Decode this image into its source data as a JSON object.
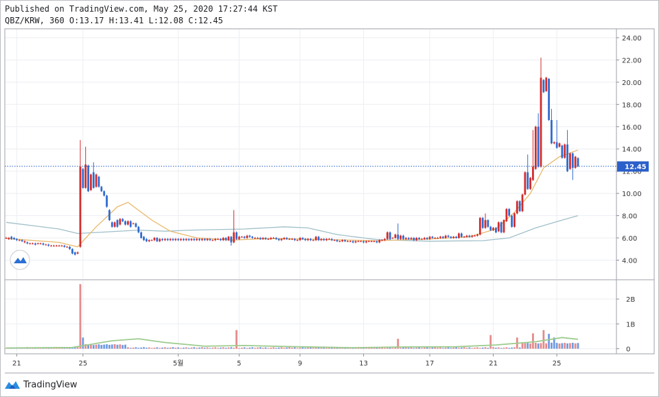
{
  "header": {
    "published": "Published on TradingView.com, May 25, 2020 17:27:44 KST",
    "ohlc": "QBZ/KRW, 360 O:13.17 H:13.41 L:12.08 C:12.45"
  },
  "footer": {
    "brand": "TradingView"
  },
  "colors": {
    "up": "#d22b2b",
    "down": "#2f6ad0",
    "ma_short": "#e8b86a",
    "ma_long": "#9fbfc9",
    "vol_ma": "#9ccc8e",
    "last_price": "#2b5fc9"
  },
  "chart_data": {
    "type": "candlestick",
    "price_axis": {
      "ticks": [
        "24.00",
        "22.00",
        "20.00",
        "18.00",
        "16.00",
        "14.00",
        "12.00",
        "10.00",
        "8.00",
        "6.00",
        "4.00"
      ],
      "ylim": [
        2.3,
        24.8
      ]
    },
    "volume_axis": {
      "ticks": [
        "2B",
        "1B",
        "0"
      ],
      "ylim": [
        -0.15,
        2.75
      ]
    },
    "time_axis": {
      "labels": [
        "21",
        "25",
        "5월",
        "5",
        "9",
        "13",
        "17",
        "21",
        "25"
      ],
      "label_index": [
        4,
        29,
        65,
        88,
        111,
        135,
        160,
        184,
        208
      ]
    },
    "last_price": {
      "value": 12.45,
      "label": "12.45"
    },
    "candles": [
      [
        6.0,
        6.0
      ],
      [
        5.9,
        6.0
      ],
      [
        6.1,
        5.9
      ],
      [
        6.0,
        5.9
      ],
      [
        5.9,
        5.8
      ],
      [
        5.8,
        5.8
      ],
      [
        5.8,
        5.7
      ],
      [
        5.6,
        5.7
      ],
      [
        5.6,
        5.5
      ],
      [
        5.5,
        5.5
      ],
      [
        5.5,
        5.5
      ],
      [
        5.5,
        5.4
      ],
      [
        5.5,
        5.5
      ],
      [
        5.5,
        5.5
      ],
      [
        5.5,
        5.4
      ],
      [
        5.4,
        5.4
      ],
      [
        5.4,
        5.3
      ],
      [
        5.3,
        5.3
      ],
      [
        5.3,
        5.3
      ],
      [
        5.3,
        5.3
      ],
      [
        5.3,
        5.3
      ],
      [
        5.3,
        5.3
      ],
      [
        5.3,
        5.2
      ],
      [
        5.2,
        5.2
      ],
      [
        5.2,
        5.0
      ],
      [
        5.0,
        4.6
      ],
      [
        4.7,
        4.5
      ],
      [
        4.6,
        4.7
      ],
      [
        5.2,
        12.4
      ],
      [
        12.2,
        10.5
      ],
      [
        10.5,
        12.6
      ],
      [
        12.5,
        10.2
      ],
      [
        10.3,
        11.7
      ],
      [
        11.9,
        10.5
      ],
      [
        10.6,
        11.7
      ],
      [
        11.5,
        10.6
      ],
      [
        10.6,
        10.2
      ],
      [
        10.2,
        9.8
      ],
      [
        9.8,
        8.8
      ],
      [
        8.5,
        7.6
      ],
      [
        7.4,
        7.0
      ],
      [
        7.0,
        7.4
      ],
      [
        7.6,
        7.0
      ],
      [
        7.2,
        7.7
      ],
      [
        7.7,
        7.5
      ],
      [
        7.5,
        7.2
      ],
      [
        7.2,
        7.5
      ],
      [
        7.5,
        7.0
      ],
      [
        7.3,
        7.3
      ],
      [
        7.3,
        7.0
      ],
      [
        7.0,
        6.5
      ],
      [
        6.5,
        6.0
      ],
      [
        6.1,
        5.8
      ],
      [
        5.9,
        5.7
      ],
      [
        5.7,
        5.8
      ],
      [
        5.8,
        5.8
      ],
      [
        5.8,
        6.0
      ],
      [
        6.0,
        5.7
      ],
      [
        5.7,
        5.9
      ],
      [
        5.9,
        5.8
      ],
      [
        5.8,
        5.9
      ],
      [
        5.9,
        5.8
      ],
      [
        5.8,
        5.9
      ],
      [
        5.9,
        5.8
      ],
      [
        5.8,
        5.9
      ],
      [
        5.9,
        5.8
      ],
      [
        5.8,
        5.9
      ],
      [
        5.9,
        5.8
      ],
      [
        5.8,
        5.9
      ],
      [
        5.9,
        5.8
      ],
      [
        5.8,
        5.9
      ],
      [
        5.9,
        5.8
      ],
      [
        5.8,
        5.9
      ],
      [
        5.9,
        5.8
      ],
      [
        5.8,
        5.9
      ],
      [
        5.9,
        5.8
      ],
      [
        5.8,
        5.9
      ],
      [
        5.9,
        5.8
      ],
      [
        5.8,
        5.8
      ],
      [
        5.8,
        5.9
      ],
      [
        5.9,
        5.9
      ],
      [
        5.9,
        5.8
      ],
      [
        5.8,
        6.0
      ],
      [
        6.0,
        5.8
      ],
      [
        5.8,
        6.1
      ],
      [
        6.1,
        5.6
      ],
      [
        5.6,
        6.5
      ],
      [
        6.5,
        5.9
      ],
      [
        5.9,
        6.1
      ],
      [
        6.1,
        6.1
      ],
      [
        6.1,
        6.0
      ],
      [
        6.0,
        6.2
      ],
      [
        6.2,
        6.1
      ],
      [
        6.1,
        6.0
      ],
      [
        6.0,
        6.0
      ],
      [
        6.0,
        6.0
      ],
      [
        6.0,
        5.9
      ],
      [
        5.9,
        6.0
      ],
      [
        6.0,
        5.9
      ],
      [
        5.9,
        5.9
      ],
      [
        5.9,
        6.0
      ],
      [
        6.0,
        6.0
      ],
      [
        6.0,
        5.9
      ],
      [
        5.9,
        5.8
      ],
      [
        5.8,
        5.9
      ],
      [
        5.9,
        6.0
      ],
      [
        6.0,
        5.9
      ],
      [
        5.9,
        5.9
      ],
      [
        5.9,
        5.9
      ],
      [
        5.9,
        5.8
      ],
      [
        5.8,
        5.8
      ],
      [
        5.8,
        6.0
      ],
      [
        6.0,
        5.9
      ],
      [
        5.9,
        5.8
      ],
      [
        5.8,
        5.9
      ],
      [
        5.9,
        5.8
      ],
      [
        5.8,
        5.8
      ],
      [
        5.8,
        6.1
      ],
      [
        6.1,
        5.8
      ],
      [
        5.8,
        5.9
      ],
      [
        5.9,
        5.8
      ],
      [
        5.8,
        5.9
      ],
      [
        5.9,
        5.9
      ],
      [
        5.9,
        5.8
      ],
      [
        5.8,
        5.8
      ],
      [
        5.8,
        5.7
      ],
      [
        5.7,
        5.7
      ],
      [
        5.7,
        5.8
      ],
      [
        5.8,
        5.7
      ],
      [
        5.7,
        5.7
      ],
      [
        5.7,
        5.7
      ],
      [
        5.7,
        5.6
      ],
      [
        5.6,
        5.7
      ],
      [
        5.7,
        5.7
      ],
      [
        5.7,
        5.7
      ],
      [
        5.7,
        5.6
      ],
      [
        5.6,
        5.7
      ],
      [
        5.7,
        5.7
      ],
      [
        5.7,
        5.7
      ],
      [
        5.7,
        5.7
      ],
      [
        5.7,
        5.6
      ],
      [
        5.6,
        5.8
      ],
      [
        5.8,
        5.8
      ],
      [
        5.8,
        5.9
      ],
      [
        5.9,
        6.5
      ],
      [
        6.5,
        5.9
      ],
      [
        6.0,
        6.0
      ],
      [
        6.0,
        6.3
      ],
      [
        6.3,
        5.9
      ],
      [
        5.9,
        6.2
      ],
      [
        6.2,
        5.9
      ],
      [
        5.9,
        6.0
      ],
      [
        6.0,
        5.9
      ],
      [
        5.9,
        6.0
      ],
      [
        6.0,
        5.8
      ],
      [
        5.8,
        6.0
      ],
      [
        6.0,
        5.9
      ],
      [
        5.9,
        5.9
      ],
      [
        5.9,
        6.0
      ],
      [
        6.0,
        5.9
      ],
      [
        5.9,
        6.1
      ],
      [
        6.1,
        6.0
      ],
      [
        6.0,
        6.0
      ],
      [
        6.0,
        6.0
      ],
      [
        6.0,
        6.1
      ],
      [
        6.1,
        6.0
      ],
      [
        6.0,
        6.2
      ],
      [
        6.2,
        6.1
      ],
      [
        6.1,
        6.0
      ],
      [
        6.0,
        6.1
      ],
      [
        6.1,
        6.0
      ],
      [
        6.0,
        6.4
      ],
      [
        6.4,
        6.1
      ],
      [
        6.1,
        6.1
      ],
      [
        6.1,
        6.2
      ],
      [
        6.2,
        6.1
      ],
      [
        6.1,
        6.2
      ],
      [
        6.2,
        6.2
      ],
      [
        6.2,
        6.3
      ],
      [
        6.3,
        7.8
      ],
      [
        7.8,
        6.9
      ],
      [
        6.9,
        7.6
      ],
      [
        7.6,
        7.0
      ],
      [
        7.0,
        6.7
      ],
      [
        6.7,
        6.9
      ],
      [
        6.9,
        6.5
      ],
      [
        6.6,
        7.4
      ],
      [
        7.4,
        6.5
      ],
      [
        6.5,
        7.6
      ],
      [
        7.5,
        8.6
      ],
      [
        8.6,
        8.0
      ],
      [
        8.0,
        7.0
      ],
      [
        7.0,
        8.2
      ],
      [
        8.2,
        9.3
      ],
      [
        9.3,
        8.4
      ],
      [
        8.4,
        9.9
      ],
      [
        9.9,
        11.9
      ],
      [
        11.9,
        10.4
      ],
      [
        10.4,
        11.4
      ],
      [
        11.2,
        12.4
      ],
      [
        12.2,
        16.0
      ],
      [
        16.0,
        12.4
      ],
      [
        12.4,
        20.4
      ],
      [
        20.2,
        19.1
      ],
      [
        19.2,
        20.4
      ],
      [
        20.3,
        16.6
      ],
      [
        16.6,
        14.5
      ],
      [
        14.5,
        14.6
      ],
      [
        14.6,
        14.1
      ],
      [
        14.2,
        14.5
      ],
      [
        14.3,
        13.2
      ],
      [
        13.2,
        14.4
      ],
      [
        14.4,
        12.0
      ],
      [
        12.2,
        13.6
      ],
      [
        13.6,
        12.3
      ],
      [
        12.3,
        13.3
      ],
      [
        13.17,
        12.45
      ]
    ],
    "wick_extremes": [
      {
        "i": 28,
        "high": 14.8,
        "low": 5.1
      },
      {
        "i": 30,
        "high": 14.2
      },
      {
        "i": 33,
        "high": 12.8
      },
      {
        "i": 85,
        "low": 5.3
      },
      {
        "i": 86,
        "high": 8.5
      },
      {
        "i": 148,
        "high": 7.3
      },
      {
        "i": 181,
        "high": 8.2
      },
      {
        "i": 197,
        "high": 13.5
      },
      {
        "i": 199,
        "high": 15.7
      },
      {
        "i": 201,
        "high": 17.2
      },
      {
        "i": 202,
        "high": 22.2
      },
      {
        "i": 206,
        "high": 17.6
      },
      {
        "i": 208,
        "high": 16.6
      },
      {
        "i": 212,
        "high": 15.7
      },
      {
        "i": 214,
        "low": 11.2
      }
    ],
    "ma_short": [
      [
        0,
        5.95
      ],
      [
        20,
        5.6
      ],
      [
        27,
        5.2
      ],
      [
        34,
        7.0
      ],
      [
        42,
        8.8
      ],
      [
        46,
        9.2
      ],
      [
        55,
        7.6
      ],
      [
        62,
        6.6
      ],
      [
        72,
        6.0
      ],
      [
        85,
        5.8
      ],
      [
        100,
        5.95
      ],
      [
        120,
        5.85
      ],
      [
        140,
        5.75
      ],
      [
        160,
        5.9
      ],
      [
        175,
        6.1
      ],
      [
        185,
        6.8
      ],
      [
        192,
        8.3
      ],
      [
        198,
        10.0
      ],
      [
        203,
        12.3
      ],
      [
        209,
        13.3
      ],
      [
        216,
        13.9
      ]
    ],
    "ma_long": [
      [
        0,
        7.4
      ],
      [
        10,
        7.1
      ],
      [
        20,
        6.8
      ],
      [
        27,
        6.4
      ],
      [
        35,
        6.5
      ],
      [
        50,
        6.7
      ],
      [
        60,
        6.6
      ],
      [
        70,
        6.7
      ],
      [
        90,
        6.8
      ],
      [
        105,
        7.0
      ],
      [
        114,
        6.9
      ],
      [
        125,
        6.3
      ],
      [
        140,
        5.85
      ],
      [
        160,
        5.7
      ],
      [
        180,
        5.75
      ],
      [
        190,
        6.0
      ],
      [
        200,
        6.9
      ],
      [
        210,
        7.6
      ],
      [
        216,
        8.0
      ]
    ],
    "volume_spikes": [
      {
        "i": 28,
        "value": 2.6,
        "dir": "up"
      },
      {
        "i": 29,
        "value": 0.45,
        "dir": "down"
      },
      {
        "i": 87,
        "value": 0.75,
        "dir": "up"
      },
      {
        "i": 148,
        "value": 0.4,
        "dir": "up"
      },
      {
        "i": 183,
        "value": 0.55,
        "dir": "up"
      },
      {
        "i": 193,
        "value": 0.45,
        "dir": "up"
      },
      {
        "i": 199,
        "value": 0.62,
        "dir": "up"
      },
      {
        "i": 203,
        "value": 0.75,
        "dir": "up"
      },
      {
        "i": 205,
        "value": 0.6,
        "dir": "down"
      },
      {
        "i": 207,
        "value": 0.45,
        "dir": "down"
      }
    ],
    "vol_ma": [
      [
        0,
        0.03
      ],
      [
        25,
        0.05
      ],
      [
        40,
        0.32
      ],
      [
        50,
        0.4
      ],
      [
        60,
        0.25
      ],
      [
        75,
        0.1
      ],
      [
        90,
        0.13
      ],
      [
        105,
        0.09
      ],
      [
        130,
        0.04
      ],
      [
        150,
        0.07
      ],
      [
        170,
        0.08
      ],
      [
        185,
        0.15
      ],
      [
        200,
        0.28
      ],
      [
        210,
        0.45
      ],
      [
        216,
        0.38
      ]
    ]
  }
}
